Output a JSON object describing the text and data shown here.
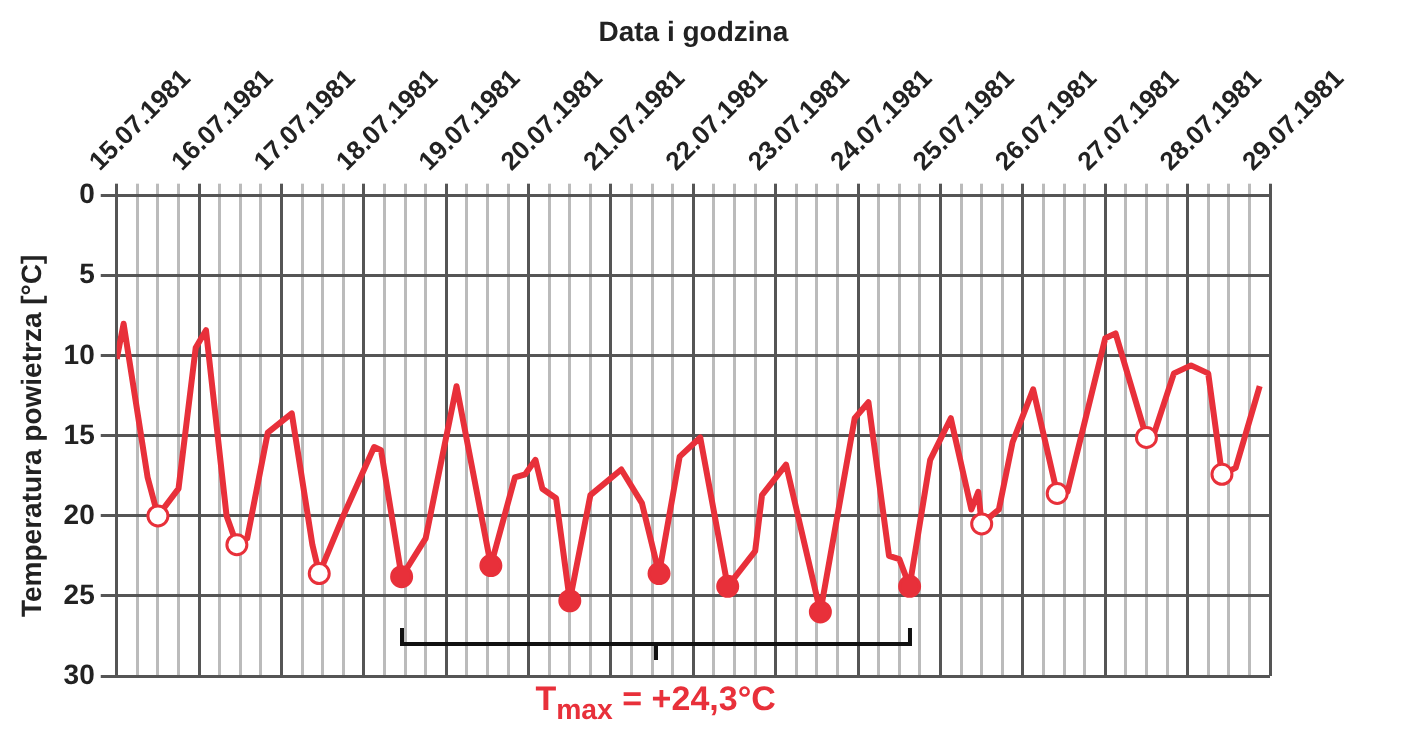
{
  "chart_data": {
    "type": "line",
    "xlabel": "Data i godzina",
    "ylabel": "Temperatura powietrza [°C]",
    "ylim": [
      30,
      0
    ],
    "yticks": [
      0,
      5,
      10,
      15,
      20,
      25,
      30
    ],
    "xlim": [
      "1981-07-15T00:00",
      "1981-07-29T00:00"
    ],
    "xticks": [
      {
        "value": "1981-07-15",
        "label": "15.07.1981"
      },
      {
        "value": "1981-07-15T06:00",
        "label": null
      },
      {
        "value": "1981-07-15T12:00",
        "label": null
      },
      {
        "value": "1981-07-15T18:00",
        "label": null
      },
      {
        "value": "1981-07-16",
        "label": "16.07.1981"
      },
      {
        "value": "1981-07-16T06:00",
        "label": null
      },
      {
        "value": "1981-07-16T12:00",
        "label": null
      },
      {
        "value": "1981-07-16T18:00",
        "label": null
      },
      {
        "value": "1981-07-17",
        "label": "17.07.1981"
      },
      {
        "value": "1981-07-17T06:00",
        "label": null
      },
      {
        "value": "1981-07-17T12:00",
        "label": null
      },
      {
        "value": "1981-07-17T18:00",
        "label": null
      },
      {
        "value": "1981-07-18",
        "label": "18.07.1981"
      },
      {
        "value": "1981-07-18T06:00",
        "label": null
      },
      {
        "value": "1981-07-18T12:00",
        "label": null
      },
      {
        "value": "1981-07-18T18:00",
        "label": null
      },
      {
        "value": "1981-07-19",
        "label": "19.07.1981"
      },
      {
        "value": "1981-07-19T06:00",
        "label": null
      },
      {
        "value": "1981-07-19T12:00",
        "label": null
      },
      {
        "value": "1981-07-19T18:00",
        "label": null
      },
      {
        "value": "1981-07-20",
        "label": "20.07.1981"
      },
      {
        "value": "1981-07-20T06:00",
        "label": null
      },
      {
        "value": "1981-07-20T12:00",
        "label": null
      },
      {
        "value": "1981-07-20T18:00",
        "label": null
      },
      {
        "value": "1981-07-21",
        "label": "21.07.1981"
      },
      {
        "value": "1981-07-21T06:00",
        "label": null
      },
      {
        "value": "1981-07-21T12:00",
        "label": null
      },
      {
        "value": "1981-07-21T18:00",
        "label": null
      },
      {
        "value": "1981-07-22",
        "label": "22.07.1981"
      },
      {
        "value": "1981-07-22T06:00",
        "label": null
      },
      {
        "value": "1981-07-22T12:00",
        "label": null
      },
      {
        "value": "1981-07-22T18:00",
        "label": null
      },
      {
        "value": "1981-07-23",
        "label": "23.07.1981"
      },
      {
        "value": "1981-07-23T06:00",
        "label": null
      },
      {
        "value": "1981-07-23T12:00",
        "label": null
      },
      {
        "value": "1981-07-23T18:00",
        "label": null
      },
      {
        "value": "1981-07-24",
        "label": "24.07.1981"
      },
      {
        "value": "1981-07-24T06:00",
        "label": null
      },
      {
        "value": "1981-07-24T12:00",
        "label": null
      },
      {
        "value": "1981-07-24T18:00",
        "label": null
      },
      {
        "value": "1981-07-25",
        "label": "25.07.1981"
      },
      {
        "value": "1981-07-25T06:00",
        "label": null
      },
      {
        "value": "1981-07-25T12:00",
        "label": null
      },
      {
        "value": "1981-07-25T18:00",
        "label": null
      },
      {
        "value": "1981-07-26",
        "label": "26.07.1981"
      },
      {
        "value": "1981-07-26T06:00",
        "label": null
      },
      {
        "value": "1981-07-26T12:00",
        "label": null
      },
      {
        "value": "1981-07-26T18:00",
        "label": null
      },
      {
        "value": "1981-07-27",
        "label": "27.07.1981"
      },
      {
        "value": "1981-07-27T06:00",
        "label": null
      },
      {
        "value": "1981-07-27T12:00",
        "label": null
      },
      {
        "value": "1981-07-27T18:00",
        "label": null
      },
      {
        "value": "1981-07-28",
        "label": "28.07.1981"
      },
      {
        "value": "1981-07-28T06:00",
        "label": null
      },
      {
        "value": "1981-07-28T12:00",
        "label": null
      },
      {
        "value": "1981-07-28T18:00",
        "label": null
      },
      {
        "value": "1981-07-29",
        "label": "29.07.1981"
      }
    ],
    "grid": true,
    "legend": false,
    "line_style": "solid",
    "series": [
      {
        "color": "#e8303a",
        "marker": "none",
        "x": [
          "1981-07-15T00:00",
          "1981-07-15T02:00",
          "1981-07-15T09:00",
          "1981-07-15T12:00",
          "1981-07-15T18:00",
          "1981-07-15T23:00",
          "1981-07-16T02:00",
          "1981-07-16T08:00",
          "1981-07-16T11:00",
          "1981-07-16T14:00",
          "1981-07-16T20:00",
          "1981-07-17T03:00",
          "1981-07-17T09:00",
          "1981-07-17T11:00",
          "1981-07-17T18:00",
          "1981-07-18T03:00",
          "1981-07-18T05:00",
          "1981-07-18T11:00",
          "1981-07-18T18:00",
          "1981-07-19T03:00",
          "1981-07-19T13:00",
          "1981-07-19T20:00",
          "1981-07-19T23:00",
          "1981-07-20T02:00",
          "1981-07-20T04:00",
          "1981-07-20T08:00",
          "1981-07-20T12:00",
          "1981-07-20T18:00",
          "1981-07-21T03:00",
          "1981-07-21T09:00",
          "1981-07-21T14:00",
          "1981-07-21T20:00",
          "1981-07-22T02:00",
          "1981-07-22T10:00",
          "1981-07-22T18:00",
          "1981-07-22T20:00",
          "1981-07-23T03:00",
          "1981-07-23T13:00",
          "1981-07-23T23:00",
          "1981-07-24T03:00",
          "1981-07-24T09:00",
          "1981-07-24T12:00",
          "1981-07-24T15:00",
          "1981-07-24T21:00",
          "1981-07-25T03:00",
          "1981-07-25T09:00",
          "1981-07-25T11:00",
          "1981-07-25T12:00",
          "1981-07-25T17:00",
          "1981-07-25T21:00",
          "1981-07-26T03:00",
          "1981-07-26T10:00",
          "1981-07-26T13:00",
          "1981-07-26T20:00",
          "1981-07-27T00:00",
          "1981-07-27T03:00",
          "1981-07-27T12:00",
          "1981-07-27T14:00",
          "1981-07-27T20:00",
          "1981-07-28T01:00",
          "1981-07-28T06:00",
          "1981-07-28T10:00",
          "1981-07-28T14:00",
          "1981-07-28T21:00"
        ],
        "values": [
          10.2,
          8.0,
          17.6,
          20.0,
          18.3,
          9.5,
          8.4,
          20.0,
          21.8,
          21.4,
          14.8,
          13.6,
          21.8,
          23.6,
          20.0,
          15.7,
          15.9,
          23.8,
          21.4,
          11.9,
          23.1,
          17.6,
          17.4,
          16.5,
          18.3,
          18.9,
          25.3,
          18.7,
          17.1,
          19.2,
          23.6,
          16.3,
          15.1,
          24.4,
          22.2,
          18.7,
          16.8,
          26.0,
          13.9,
          12.9,
          22.5,
          22.7,
          24.4,
          16.5,
          13.9,
          19.6,
          18.5,
          20.5,
          19.6,
          15.4,
          12.1,
          18.6,
          18.5,
          12.4,
          8.9,
          8.6,
          15.1,
          15.0,
          11.1,
          10.6,
          11.1,
          17.4,
          17.0,
          11.9
        ]
      },
      {
        "type": "scatter",
        "color": "#e8303a",
        "marker": "circle",
        "x": [
          "1981-07-15T12:00",
          "1981-07-16T11:00",
          "1981-07-17T11:00",
          "1981-07-25T12:00",
          "1981-07-26T10:00",
          "1981-07-27T12:00",
          "1981-07-28T10:00"
        ],
        "values": [
          20.0,
          21.8,
          23.6,
          20.5,
          18.6,
          15.1,
          17.4
        ]
      },
      {
        "type": "scatter",
        "color": "#e8303a",
        "marker": "circle",
        "x": [
          "1981-07-18T11:00",
          "1981-07-19T13:00",
          "1981-07-20T12:00",
          "1981-07-21T14:00",
          "1981-07-22T10:00",
          "1981-07-23T13:00",
          "1981-07-24T15:00"
        ],
        "values": [
          23.8,
          23.1,
          25.3,
          23.6,
          24.4,
          26.0,
          24.4
        ]
      }
    ],
    "annotations": [
      "T$_{max}$ = +24,3°C"
    ]
  }
}
